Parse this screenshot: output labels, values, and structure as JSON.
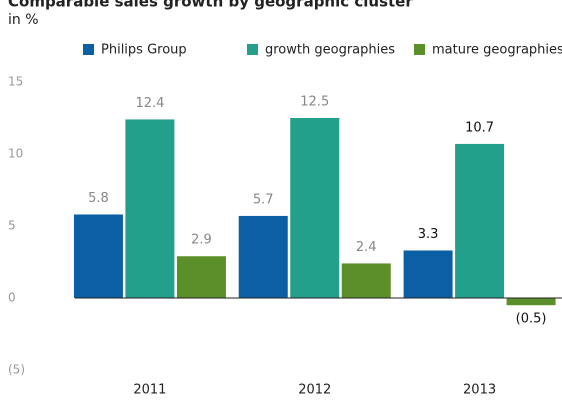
{
  "chart_data": {
    "type": "bar",
    "title": "Comparable sales growth by geographic cluster",
    "subtitle": "in %",
    "categories": [
      "2011",
      "2012",
      "2013"
    ],
    "series": [
      {
        "name": "Philips Group",
        "color": "#0b5fa5",
        "values": [
          5.8,
          5.7,
          3.3
        ]
      },
      {
        "name": "growth geographies",
        "color": "#23a08c",
        "values": [
          12.4,
          12.5,
          10.7
        ]
      },
      {
        "name": "mature geographies",
        "color": "#5b8f29",
        "values": [
          2.9,
          2.4,
          -0.5
        ],
        "value_labels": [
          "2.9",
          "2.4",
          "(0.5)"
        ]
      }
    ],
    "ylim": [
      -5,
      15
    ],
    "yticks": [
      {
        "value": -5,
        "label": "(5)"
      },
      0,
      5,
      10,
      15
    ],
    "grid": false,
    "legend": "top"
  }
}
